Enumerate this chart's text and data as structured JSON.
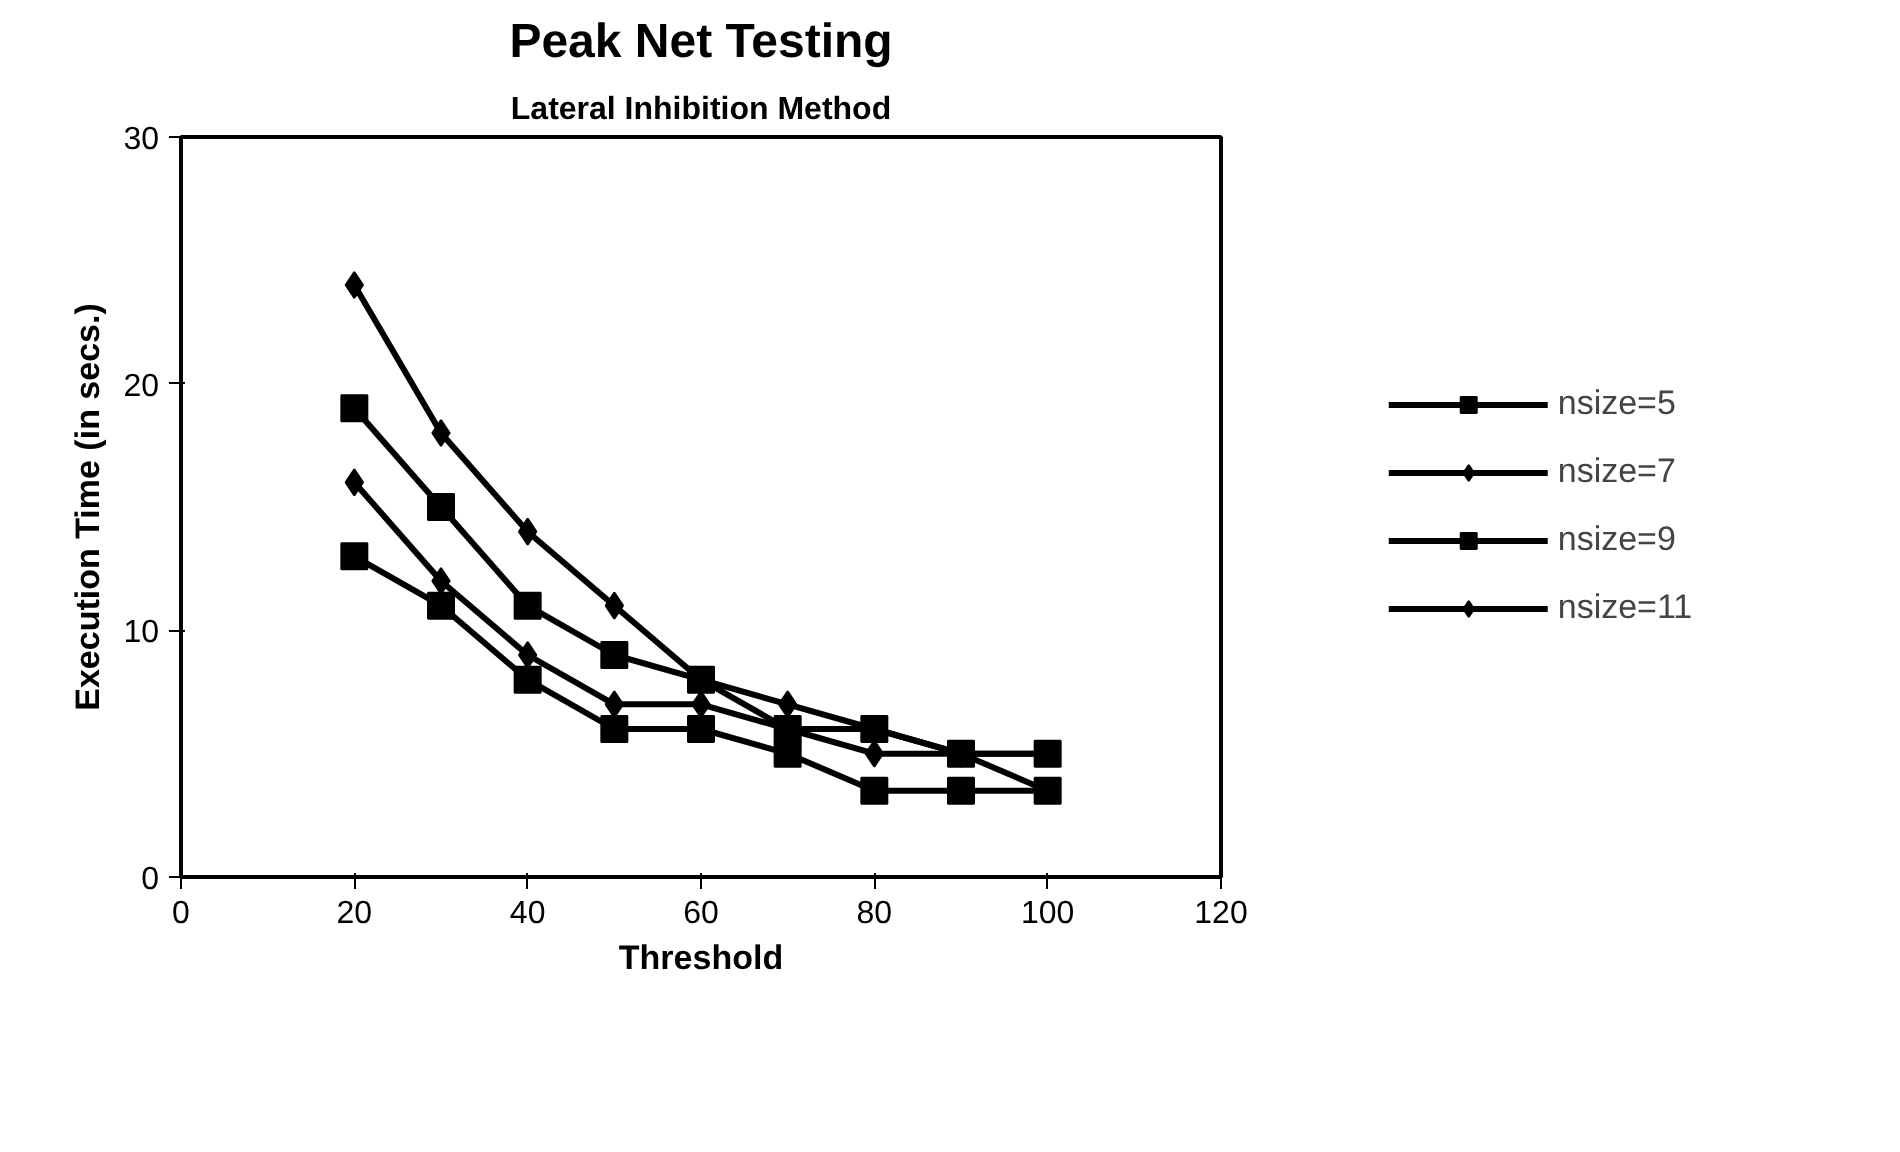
{
  "chart_data": {
    "type": "line",
    "title": "Peak Net Testing",
    "subtitle": "Lateral Inhibition Method",
    "xlabel": "Threshold",
    "ylabel": "Execution Time (in secs.)",
    "x": [
      20,
      30,
      40,
      50,
      60,
      70,
      80,
      90,
      100
    ],
    "series": [
      {
        "name": "nsize=5",
        "color": "#000000",
        "marker": "square",
        "values": [
          13,
          11,
          8,
          6,
          6,
          5,
          3.5,
          3.5,
          3.5
        ]
      },
      {
        "name": "nsize=7",
        "color": "#000000",
        "marker": "diamond",
        "values": [
          16,
          12,
          9,
          7,
          7,
          6,
          5,
          5,
          5
        ]
      },
      {
        "name": "nsize=9",
        "color": "#000000",
        "marker": "square",
        "values": [
          19,
          15,
          11,
          9,
          8,
          6,
          6,
          5,
          5
        ]
      },
      {
        "name": "nsize=11",
        "color": "#000000",
        "marker": "diamond",
        "values": [
          24,
          18,
          14,
          11,
          8,
          7,
          6,
          5,
          3.5
        ]
      }
    ],
    "xlim": [
      0,
      120
    ],
    "xticks": [
      0,
      20,
      40,
      60,
      80,
      100,
      120
    ],
    "ylim": [
      0,
      30
    ],
    "yticks": [
      0,
      10,
      20,
      30
    ],
    "grid": false,
    "legend": "right",
    "line_style": "solid"
  }
}
